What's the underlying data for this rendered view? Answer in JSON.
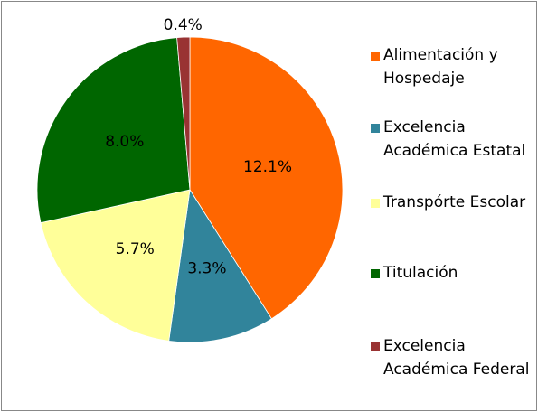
{
  "chart_data": {
    "type": "pie",
    "categories": [
      "Alimentación y Hospedaje",
      "Excelencia Académica Estatal",
      "Transpórte Escolar",
      "Titulación",
      "Excelencia Académica Federal"
    ],
    "values": [
      12.1,
      3.3,
      5.7,
      8.0,
      0.4
    ],
    "value_labels": [
      "12.1%",
      "3.3%",
      "5.7%",
      "8.0%",
      "0.4%"
    ],
    "colors": [
      "#ff6600",
      "#31849b",
      "#ffff99",
      "#006600",
      "#993333"
    ],
    "legend": "right"
  }
}
